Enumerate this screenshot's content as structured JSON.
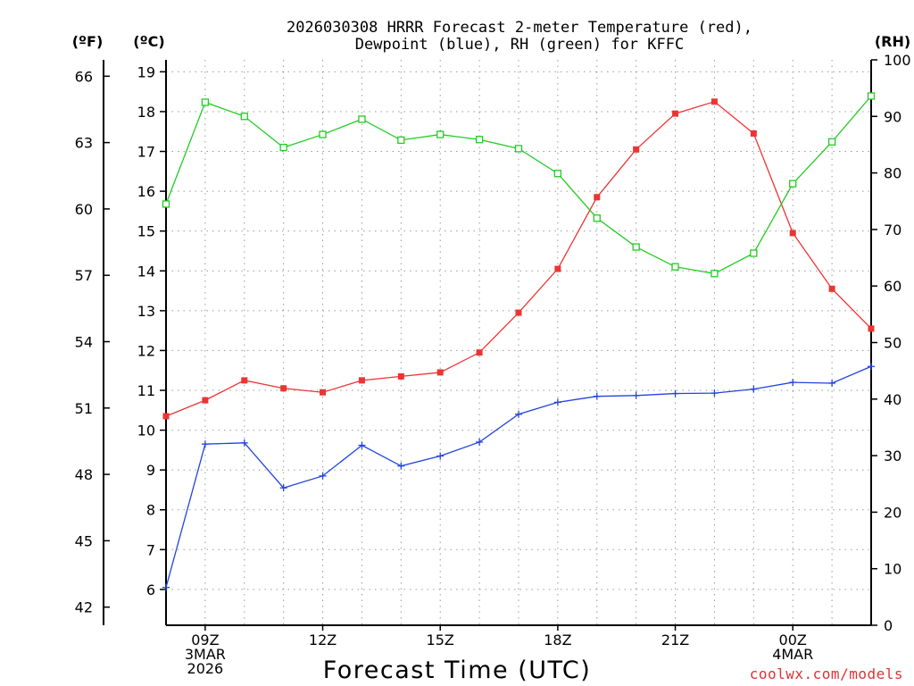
{
  "chart_data": {
    "type": "line",
    "title_line1": "2026030308 HRRR Forecast 2-meter Temperature (red),",
    "title_line2": "Dewpoint (blue), RH (green) for KFFC",
    "xlabel": "Forecast Time (UTC)",
    "credit": "coolwx.com/models",
    "left_outer_unit": "(ºF)",
    "left_inner_unit": "(ºC)",
    "right_unit": "(RH)",
    "hours": [
      0,
      1,
      2,
      3,
      4,
      5,
      6,
      7,
      8,
      9,
      10,
      11,
      12,
      13,
      14,
      15,
      16,
      17,
      18
    ],
    "x_ticks": [
      {
        "hour": 1,
        "lines": [
          "09Z",
          "3MAR",
          "2026"
        ]
      },
      {
        "hour": 4,
        "lines": [
          "12Z"
        ]
      },
      {
        "hour": 7,
        "lines": [
          "15Z"
        ]
      },
      {
        "hour": 10,
        "lines": [
          "18Z"
        ]
      },
      {
        "hour": 13,
        "lines": [
          "21Z"
        ]
      },
      {
        "hour": 16,
        "lines": [
          "00Z",
          "4MAR"
        ]
      }
    ],
    "celsius_axis": {
      "min": 5.1,
      "max": 19.3,
      "ticks": [
        6,
        7,
        8,
        9,
        10,
        11,
        12,
        13,
        14,
        15,
        16,
        17,
        18,
        19
      ]
    },
    "fahrenheit_ticks": [
      42,
      45,
      48,
      51,
      54,
      57,
      60,
      63,
      66
    ],
    "rh_axis": {
      "min": 0,
      "max": 100,
      "ticks": [
        0,
        10,
        20,
        30,
        40,
        50,
        60,
        70,
        80,
        90,
        100
      ]
    },
    "series": [
      {
        "name": "Temperature",
        "unit": "C",
        "color": "#ee3333",
        "marker": "filled-square",
        "values": [
          10.35,
          10.75,
          11.25,
          11.05,
          10.95,
          11.25,
          11.35,
          11.45,
          11.95,
          12.95,
          14.05,
          15.85,
          17.05,
          17.95,
          18.25,
          17.45,
          14.95,
          13.55,
          12.55
        ]
      },
      {
        "name": "Dewpoint",
        "unit": "C",
        "color": "#2244dd",
        "marker": "plus",
        "values": [
          6.05,
          9.65,
          9.68,
          8.55,
          8.85,
          9.62,
          9.1,
          9.35,
          9.7,
          10.4,
          10.7,
          10.85,
          10.87,
          10.92,
          10.93,
          11.03,
          11.2,
          11.18,
          11.6
        ]
      },
      {
        "name": "RH",
        "unit": "%",
        "color": "#22cc22",
        "marker": "open-square",
        "values": [
          74.5,
          92.5,
          90.0,
          84.5,
          86.8,
          89.5,
          85.8,
          86.8,
          85.9,
          84.3,
          79.9,
          72.0,
          66.9,
          63.4,
          62.2,
          65.8,
          78.1,
          85.5,
          93.6
        ]
      }
    ]
  }
}
